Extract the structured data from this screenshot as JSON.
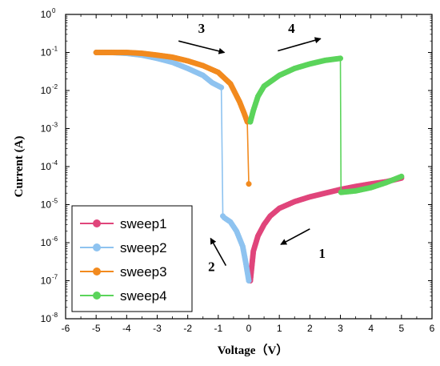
{
  "chart_data": {
    "type": "scatter",
    "xlabel": "Voltage（V）",
    "ylabel": "Current (A)",
    "xlim": [
      -6,
      6
    ],
    "ylim_log10": [
      -8,
      0
    ],
    "y_scale": "log",
    "x_ticks": [
      "-6",
      "-5",
      "-4",
      "-3",
      "-2",
      "-1",
      "0",
      "1",
      "2",
      "3",
      "4",
      "5",
      "6"
    ],
    "y_ticks": [
      {
        "base": "10",
        "exp": "-8"
      },
      {
        "base": "10",
        "exp": "-7"
      },
      {
        "base": "10",
        "exp": "-6"
      },
      {
        "base": "10",
        "exp": "-5"
      },
      {
        "base": "10",
        "exp": "-4"
      },
      {
        "base": "10",
        "exp": "-3"
      },
      {
        "base": "10",
        "exp": "-2"
      },
      {
        "base": "10",
        "exp": "-1"
      },
      {
        "base": "10",
        "exp": "0"
      }
    ],
    "legend_position": "bottom-left",
    "series": [
      {
        "name": "sweep1",
        "color": "#e0457b",
        "points": [
          [
            5,
            5e-05
          ],
          [
            4.5,
            4e-05
          ],
          [
            4,
            3.5e-05
          ],
          [
            3.5,
            3e-05
          ],
          [
            3,
            2.5e-05
          ],
          [
            2.5,
            2e-05
          ],
          [
            2,
            1.6e-05
          ],
          [
            1.5,
            1.2e-05
          ],
          [
            1,
            8e-06
          ],
          [
            0.7,
            5e-06
          ],
          [
            0.5,
            3e-06
          ],
          [
            0.3,
            1.5e-06
          ],
          [
            0.15,
            6e-07
          ],
          [
            0.05,
            1e-07
          ]
        ]
      },
      {
        "name": "sweep2",
        "color": "#8ec3f0",
        "points": [
          [
            0,
            1e-07
          ],
          [
            -0.1,
            3e-07
          ],
          [
            -0.2,
            8e-07
          ],
          [
            -0.4,
            2e-06
          ],
          [
            -0.6,
            3.5e-06
          ],
          [
            -0.8,
            4.5e-06
          ],
          [
            -0.85,
            5e-06
          ],
          [
            -0.9,
            0.012
          ],
          [
            -1.2,
            0.016
          ],
          [
            -1.5,
            0.025
          ],
          [
            -2,
            0.038
          ],
          [
            -2.5,
            0.055
          ],
          [
            -3,
            0.07
          ],
          [
            -3.5,
            0.085
          ],
          [
            -4,
            0.095
          ],
          [
            -4.5,
            0.1
          ],
          [
            -5,
            0.1
          ]
        ]
      },
      {
        "name": "sweep3",
        "color": "#f28a1e",
        "points": [
          [
            -5,
            0.1
          ],
          [
            -4.5,
            0.1
          ],
          [
            -4,
            0.1
          ],
          [
            -3.5,
            0.095
          ],
          [
            -3,
            0.085
          ],
          [
            -2.5,
            0.075
          ],
          [
            -2,
            0.06
          ],
          [
            -1.5,
            0.045
          ],
          [
            -1,
            0.03
          ],
          [
            -0.6,
            0.015
          ],
          [
            -0.3,
            0.005
          ],
          [
            -0.15,
            0.0025
          ],
          [
            -0.05,
            0.0015
          ],
          [
            0,
            3.5e-05
          ]
        ]
      },
      {
        "name": "sweep4",
        "color": "#5bd45b",
        "points": [
          [
            0.05,
            0.0015
          ],
          [
            0.15,
            0.003
          ],
          [
            0.3,
            0.007
          ],
          [
            0.5,
            0.013
          ],
          [
            1,
            0.025
          ],
          [
            1.5,
            0.038
          ],
          [
            2,
            0.05
          ],
          [
            2.5,
            0.062
          ],
          [
            3,
            0.07
          ],
          [
            3.02,
            2.1e-05
          ],
          [
            3.5,
            2.3e-05
          ],
          [
            4,
            2.8e-05
          ],
          [
            4.5,
            3.8e-05
          ],
          [
            5,
            5.5e-05
          ]
        ]
      }
    ],
    "annotations": [
      {
        "text": "1",
        "x": 2.4,
        "y": 4e-07
      },
      {
        "text": "2",
        "x": -1.22,
        "y": 1.8e-07
      },
      {
        "text": "3",
        "x": -1.55,
        "y": 0.33
      },
      {
        "text": "4",
        "x": 1.4,
        "y": 0.33
      }
    ],
    "arrows": [
      {
        "from": [
          2.0,
          2.3e-06
        ],
        "to": [
          1.05,
          9e-07
        ],
        "color": "#000000"
      },
      {
        "from": [
          -0.75,
          2.5e-07
        ],
        "to": [
          -1.25,
          1.3e-06
        ],
        "color": "#000000"
      },
      {
        "from": [
          -2.3,
          0.2
        ],
        "to": [
          -0.8,
          0.1
        ],
        "color": "#000000"
      },
      {
        "from": [
          0.95,
          0.11
        ],
        "to": [
          2.35,
          0.23
        ],
        "color": "#000000"
      }
    ]
  }
}
